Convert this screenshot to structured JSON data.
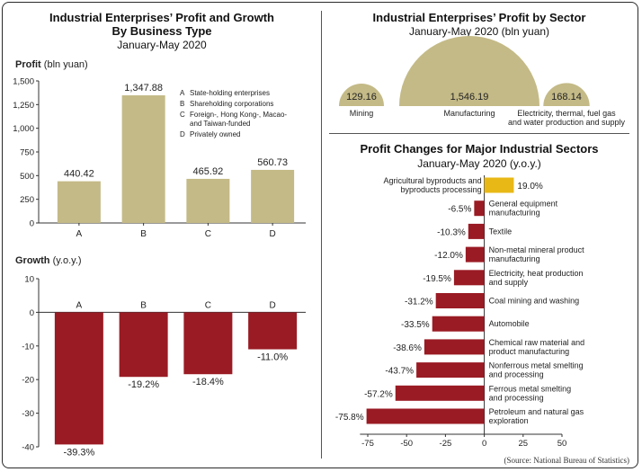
{
  "profit_by_type": {
    "title_line1": "Industrial Enterprises’ Profit and Growth",
    "title_line2": "By Business Type",
    "subtitle": "January-May 2020",
    "profit_label_bold": "Profit",
    "profit_label_unit": "(bln yuan)",
    "growth_label_bold": "Growth",
    "growth_label_unit": "(y.o.y.)",
    "legend": [
      {
        "key": "A",
        "text": "State-holding enterprises"
      },
      {
        "key": "B",
        "text": "Shareholding corporations"
      },
      {
        "key": "C",
        "text": "Foreign-, Hong Kong-, Macao- and Taiwan-funded"
      },
      {
        "key": "D",
        "text": "Privately owned"
      }
    ]
  },
  "sector_profit": {
    "title": "Industrial Enterprises’ Profit by Sector",
    "subtitle": "January-May 2020 (bln yuan)"
  },
  "sector_changes": {
    "title": "Profit Changes for Major Industrial Sectors",
    "subtitle": "January-May 2020 (y.o.y.)"
  },
  "source": "(Source: National Bureau of Statistics)",
  "colors": {
    "olive": "#c4ba87",
    "darkred": "#9a1b24",
    "gold": "#e8b817"
  },
  "chart_data": [
    {
      "type": "bar",
      "categories": [
        "A",
        "B",
        "C",
        "D"
      ],
      "values": [
        440.42,
        1347.88,
        465.92,
        560.73
      ],
      "value_labels": [
        "440.42",
        "1,347.88",
        "465.92",
        "560.73"
      ],
      "ylim": [
        0,
        1500
      ],
      "yticks": [
        0,
        250,
        500,
        750,
        1000,
        1250,
        1500
      ],
      "ytick_labels": [
        "0",
        "250",
        "500",
        "750",
        "1,000",
        "1,250",
        "1,500"
      ]
    },
    {
      "type": "bar",
      "categories": [
        "A",
        "B",
        "C",
        "D"
      ],
      "values": [
        -39.3,
        -19.2,
        -18.4,
        -11.0
      ],
      "value_labels": [
        "-39.3%",
        "-19.2%",
        "-18.4%",
        "-11.0%"
      ],
      "ylim": [
        -40,
        10
      ],
      "yticks": [
        -40,
        -30,
        -20,
        -10,
        0,
        10
      ],
      "ytick_labels": [
        "-40",
        "-30",
        "-20",
        "-10",
        "0",
        "10"
      ]
    },
    {
      "type": "area",
      "categories": [
        "Mining",
        "Manufacturing",
        "Electricity, thermal, fuel gas and water production and supply"
      ],
      "label_lines": [
        [
          "Mining"
        ],
        [
          "Manufacturing"
        ],
        [
          "Electricity, thermal, fuel gas",
          "and water production and supply"
        ]
      ],
      "values": [
        129.16,
        1546.19,
        168.14
      ],
      "value_labels": [
        "129.16",
        "1,546.19",
        "168.14"
      ]
    },
    {
      "type": "bar",
      "orientation": "horizontal",
      "categories": [
        "Agricultural byproducts and byproducts processing",
        "General equipment manufacturing",
        "Textile",
        "Non-metal mineral product manufacturing",
        "Electricity, heat production and supply",
        "Coal mining and washing",
        "Automobile",
        "Chemical raw material and product manufacturing",
        "Nonferrous metal smelting and processing",
        "Ferrous metal smelting and processing",
        "Petroleum and natural gas exploration"
      ],
      "label_lines": [
        [
          "Agricultural byproducts and",
          "byproducts processing"
        ],
        [
          "General equipment",
          "manufacturing"
        ],
        [
          "Textile"
        ],
        [
          "Non-metal mineral product",
          "manufacturing"
        ],
        [
          "Electricity, heat production",
          "and supply"
        ],
        [
          "Coal mining and washing"
        ],
        [
          "Automobile"
        ],
        [
          "Chemical raw material and",
          "product manufacturing"
        ],
        [
          "Nonferrous metal smelting",
          "and processing"
        ],
        [
          "Ferrous metal smelting",
          "and processing"
        ],
        [
          "Petroleum and natural gas",
          "exploration"
        ]
      ],
      "values": [
        19.0,
        -6.5,
        -10.3,
        -12.0,
        -19.5,
        -31.2,
        -33.5,
        -38.6,
        -43.7,
        -57.2,
        -75.8
      ],
      "value_labels": [
        "19.0%",
        "-6.5%",
        "-10.3%",
        "-12.0%",
        "-19.5%",
        "-31.2%",
        "-33.5%",
        "-38.6%",
        "-43.7%",
        "-57.2%",
        "-75.8%"
      ],
      "xlim": [
        -75,
        50
      ],
      "xticks": [
        -75,
        -50,
        -25,
        0,
        25,
        50
      ],
      "xtick_labels": [
        "-75",
        "-50",
        "-25",
        "0",
        "25",
        "50"
      ]
    }
  ]
}
